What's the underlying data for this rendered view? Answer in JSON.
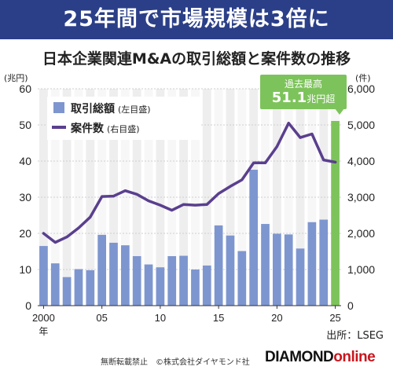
{
  "banner": {
    "title": "25年間で市場規模は3倍に"
  },
  "chart_data": {
    "type": "bar",
    "title": "日本企業関連M&Aの取引総額と案件数の推移",
    "x": [
      2000,
      2001,
      2002,
      2003,
      2004,
      2005,
      2006,
      2007,
      2008,
      2009,
      2010,
      2011,
      2012,
      2013,
      2014,
      2015,
      2016,
      2017,
      2018,
      2019,
      2020,
      2021,
      2022,
      2023,
      2024,
      2025
    ],
    "x_tick_labels": [
      "2000",
      "05",
      "10",
      "15",
      "20",
      "25"
    ],
    "x_tick_values": [
      2000,
      2005,
      2010,
      2015,
      2020,
      2025
    ],
    "x_year_suffix": "年",
    "highlight_x": 2025,
    "series": [
      {
        "name": "取引総額",
        "axis_label": "(左目盛)",
        "type": "bar",
        "color": "#7e96cf",
        "highlight_color": "#7dc35b",
        "values": [
          16.5,
          11.7,
          7.9,
          10.1,
          9.8,
          19.6,
          17.4,
          16.7,
          13.7,
          11.4,
          10.6,
          13.7,
          13.8,
          10.0,
          11.1,
          22.2,
          19.4,
          15.1,
          37.6,
          22.6,
          19.9,
          19.7,
          15.8,
          23.1,
          23.8,
          51.1
        ]
      },
      {
        "name": "案件数",
        "axis_label": "(右目盛)",
        "type": "line",
        "color": "#5a3f8e",
        "values": [
          2000,
          1750,
          1900,
          2150,
          2450,
          3020,
          3030,
          3180,
          3080,
          2900,
          2780,
          2640,
          2800,
          2780,
          2800,
          3100,
          3300,
          3480,
          3950,
          3950,
          4400,
          5050,
          4650,
          4750,
          4030,
          3970
        ]
      }
    ],
    "y_left": {
      "unit": "(兆円)",
      "ylim": [
        0,
        60
      ],
      "ticks": [
        "0",
        "10",
        "20",
        "30",
        "40",
        "50",
        "60"
      ],
      "tick_values": [
        0,
        10,
        20,
        30,
        40,
        50,
        60
      ]
    },
    "y_right": {
      "unit": "(件)",
      "ylim": [
        0,
        6000
      ],
      "ticks": [
        "0",
        "1,000",
        "2,000",
        "3,000",
        "4,000",
        "5,000",
        "6,000"
      ],
      "tick_values": [
        0,
        1000,
        2000,
        3000,
        4000,
        5000,
        6000
      ]
    },
    "grid": true,
    "legend_position": "top-left",
    "annotation": {
      "line1": "過去最高",
      "value": "51.1",
      "suffix": "兆円超"
    }
  },
  "footer": {
    "source": "出所：LSEG",
    "copyright": "無断転載禁止　©株式会社ダイヤモンド社",
    "brand_main": "DIAMOND",
    "brand_suffix": "online"
  },
  "colors": {
    "banner": "#2b3f88",
    "bar": "#7e96cf",
    "highlight": "#7dc35b",
    "line": "#5a3f8e",
    "brand_accent": "#c8161e"
  }
}
